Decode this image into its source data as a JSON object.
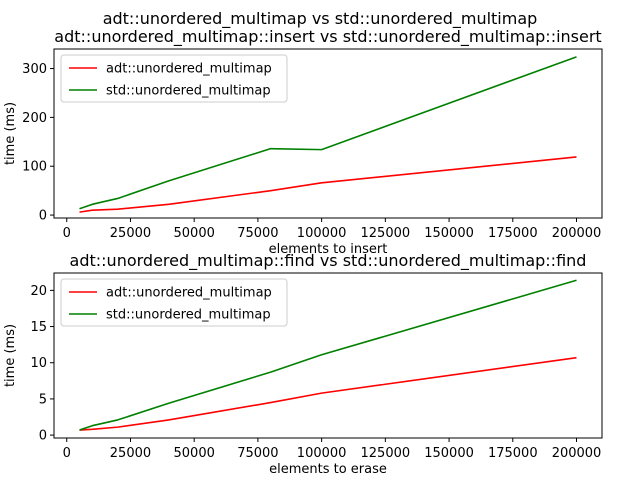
{
  "figure": {
    "suptitle": "adt::unordered_multimap vs std::unordered_multimap"
  },
  "chart_data": [
    {
      "type": "line",
      "title": "adt::unordered_multimap::insert vs std::unordered_multimap::insert",
      "xlabel": "elements to insert",
      "ylabel": "time (ms)",
      "xlim": [
        -5000,
        210000
      ],
      "ylim": [
        -6,
        340
      ],
      "xticks": [
        0,
        25000,
        50000,
        75000,
        100000,
        125000,
        150000,
        175000,
        200000
      ],
      "yticks": [
        0,
        100,
        200,
        300
      ],
      "legend": "top-left",
      "grid": false,
      "x": [
        5000,
        10000,
        20000,
        40000,
        80000,
        100000,
        200000
      ],
      "series": [
        {
          "name": "adt::unordered_multimap",
          "color": "#ff0000",
          "values": [
            6,
            10,
            12,
            22,
            50,
            66,
            119
          ]
        },
        {
          "name": "std::unordered_multimap",
          "color": "#008000",
          "values": [
            13,
            22,
            34,
            70,
            136,
            134,
            324
          ]
        }
      ]
    },
    {
      "type": "line",
      "title": "adt::unordered_multimap::find vs std::unordered_multimap::find",
      "xlabel": "elements to erase",
      "ylabel": "time (ms)",
      "xlim": [
        -5000,
        210000
      ],
      "ylim": [
        -0.4,
        22.4
      ],
      "xticks": [
        0,
        25000,
        50000,
        75000,
        100000,
        125000,
        150000,
        175000,
        200000
      ],
      "yticks": [
        0,
        5,
        10,
        15,
        20
      ],
      "legend": "top-left",
      "grid": false,
      "x": [
        5000,
        10000,
        20000,
        40000,
        80000,
        100000,
        200000
      ],
      "series": [
        {
          "name": "adt::unordered_multimap",
          "color": "#ff0000",
          "values": [
            0.7,
            0.8,
            1.1,
            2.1,
            4.5,
            5.8,
            10.7
          ]
        },
        {
          "name": "std::unordered_multimap",
          "color": "#008000",
          "values": [
            0.7,
            1.3,
            2.1,
            4.4,
            8.7,
            11.1,
            21.4
          ]
        }
      ]
    }
  ]
}
